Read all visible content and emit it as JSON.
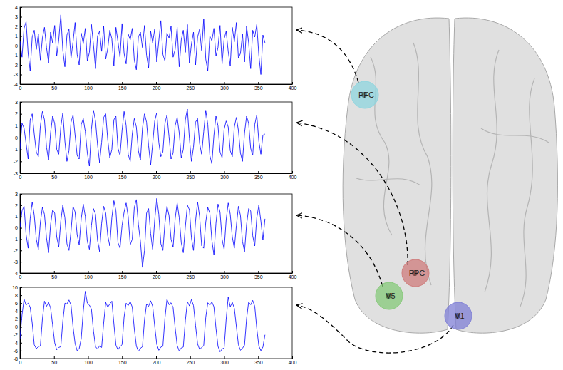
{
  "chart_data": [
    {
      "type": "line",
      "x": [
        0,
        3,
        6,
        9,
        12,
        15,
        18,
        21,
        24,
        27,
        30,
        33,
        36,
        39,
        42,
        45,
        48,
        51,
        54,
        57,
        60,
        63,
        66,
        69,
        72,
        75,
        78,
        81,
        84,
        87,
        90,
        93,
        96,
        99,
        102,
        105,
        108,
        111,
        114,
        117,
        120,
        123,
        126,
        129,
        132,
        135,
        138,
        141,
        144,
        147,
        150,
        153,
        156,
        159,
        162,
        165,
        168,
        171,
        174,
        177,
        180,
        183,
        186,
        189,
        192,
        195,
        198,
        201,
        204,
        207,
        210,
        213,
        216,
        219,
        222,
        225,
        228,
        231,
        234,
        237,
        240,
        243,
        246,
        249,
        252,
        255,
        258,
        261,
        264,
        267,
        270,
        273,
        276,
        279,
        282,
        285,
        288,
        291,
        294,
        297,
        300,
        303,
        306,
        309,
        312,
        315,
        318,
        321,
        324,
        327,
        330,
        333,
        336,
        339,
        342,
        345,
        348,
        351,
        354,
        357,
        360
      ],
      "series": [
        {
          "color": "#0000ff",
          "values": [
            0.5,
            -1.2,
            1.8,
            2.5,
            -0.8,
            -2.6,
            0.9,
            1.6,
            -0.4,
            1.2,
            -1.5,
            0.8,
            1.9,
            -0.2,
            -1.8,
            1.4,
            0.3,
            2.1,
            -1.1,
            0.6,
            3.2,
            -0.5,
            -2.2,
            1.1,
            1.7,
            -1.3,
            0.4,
            2.4,
            -0.9,
            -2.0,
            1.3,
            0.2,
            1.8,
            -1.6,
            -0.7,
            2.2,
            0.1,
            -2.4,
            1.0,
            1.5,
            -0.6,
            2.0,
            -1.4,
            -0.3,
            1.6,
            0.7,
            -2.1,
            1.9,
            0.4,
            -1.2,
            2.3,
            -0.8,
            -1.9,
            1.2,
            0.6,
            1.8,
            -1.5,
            -2.5,
            0.9,
            1.4,
            -0.2,
            2.1,
            -1.0,
            -2.3,
            1.5,
            0.3,
            1.7,
            -1.7,
            0.5,
            2.6,
            -0.9,
            -1.6,
            1.3,
            0.8,
            2.0,
            -1.2,
            -0.4,
            1.9,
            -2.2,
            0.6,
            1.6,
            -0.7,
            2.2,
            -1.8,
            0.2,
            1.4,
            -2.0,
            0.9,
            1.7,
            -0.5,
            2.8,
            -1.4,
            -2.6,
            1.0,
            0.5,
            1.8,
            -1.1,
            -0.2,
            2.1,
            -1.9,
            0.7,
            1.5,
            -0.6,
            -2.1,
            1.9,
            0.4,
            2.4,
            -1.3,
            -0.8,
            1.2,
            -1.7,
            2.0,
            0.3,
            -2.4,
            1.6,
            0.9,
            2.2,
            -1.0,
            -3.0,
            1.1,
            0.3
          ]
        }
      ],
      "xlim": [
        0,
        400
      ],
      "xticks": [
        0,
        50,
        100,
        150,
        200,
        250,
        300,
        350,
        400
      ],
      "ylim": [
        -4,
        4
      ],
      "yticks": [
        -4,
        -3,
        -2,
        -1,
        0,
        1,
        2,
        3,
        4
      ]
    },
    {
      "type": "line",
      "x": [
        0,
        3,
        6,
        9,
        12,
        15,
        18,
        21,
        24,
        27,
        30,
        33,
        36,
        39,
        42,
        45,
        48,
        51,
        54,
        57,
        60,
        63,
        66,
        69,
        72,
        75,
        78,
        81,
        84,
        87,
        90,
        93,
        96,
        99,
        102,
        105,
        108,
        111,
        114,
        117,
        120,
        123,
        126,
        129,
        132,
        135,
        138,
        141,
        144,
        147,
        150,
        153,
        156,
        159,
        162,
        165,
        168,
        171,
        174,
        177,
        180,
        183,
        186,
        189,
        192,
        195,
        198,
        201,
        204,
        207,
        210,
        213,
        216,
        219,
        222,
        225,
        228,
        231,
        234,
        237,
        240,
        243,
        246,
        249,
        252,
        255,
        258,
        261,
        264,
        267,
        270,
        273,
        276,
        279,
        282,
        285,
        288,
        291,
        294,
        297,
        300,
        303,
        306,
        309,
        312,
        315,
        318,
        321,
        324,
        327,
        330,
        333,
        336,
        339,
        342,
        345,
        348,
        351,
        354,
        357,
        360
      ],
      "series": [
        {
          "color": "#0000ff",
          "values": [
            -1.0,
            1.2,
            0.8,
            -0.5,
            -1.8,
            1.5,
            2.0,
            0.3,
            -1.2,
            -1.6,
            1.0,
            2.2,
            1.5,
            -0.8,
            -1.9,
            0.4,
            1.8,
            1.2,
            -1.0,
            -1.4,
            0.9,
            2.1,
            -0.3,
            -2.0,
            -1.1,
            1.3,
            1.9,
            0.2,
            -1.5,
            -1.8,
            1.1,
            1.6,
            0.5,
            -1.3,
            -2.4,
            0.7,
            2.3,
            1.4,
            -0.6,
            -2.1,
            -0.4,
            1.7,
            2.0,
            -0.2,
            -1.7,
            -1.0,
            1.5,
            1.8,
            -0.9,
            -1.5,
            0.6,
            2.2,
            1.0,
            -1.4,
            -2.0,
            0.3,
            1.6,
            0.9,
            -1.1,
            -1.9,
            0.8,
            2.0,
            1.3,
            -0.7,
            -2.3,
            -0.5,
            1.4,
            2.1,
            -0.4,
            -1.6,
            -1.2,
            1.2,
            1.9,
            0.1,
            -1.8,
            -1.3,
            1.0,
            1.7,
            0.4,
            -1.7,
            -1.0,
            1.5,
            2.4,
            -0.1,
            -2.0,
            -0.8,
            1.3,
            1.6,
            -0.5,
            -1.4,
            0.5,
            2.3,
            1.1,
            -1.5,
            -2.2,
            0.2,
            1.8,
            1.0,
            -1.2,
            -1.7,
            0.7,
            1.4,
            0.9,
            -1.1,
            -1.6,
            0.9,
            1.7,
            0.6,
            -1.3,
            -2.0,
            0.4,
            1.8,
            1.2,
            -0.9,
            -1.5,
            1.1,
            1.9,
            -0.3,
            -1.4,
            0.2,
            0.3
          ]
        }
      ],
      "xlim": [
        0,
        400
      ],
      "xticks": [
        0,
        50,
        100,
        150,
        200,
        250,
        300,
        350,
        400
      ],
      "ylim": [
        -3,
        3
      ],
      "yticks": [
        -3,
        -2,
        -1,
        0,
        1,
        2,
        3
      ]
    },
    {
      "type": "line",
      "x": [
        0,
        3,
        6,
        9,
        12,
        15,
        18,
        21,
        24,
        27,
        30,
        33,
        36,
        39,
        42,
        45,
        48,
        51,
        54,
        57,
        60,
        63,
        66,
        69,
        72,
        75,
        78,
        81,
        84,
        87,
        90,
        93,
        96,
        99,
        102,
        105,
        108,
        111,
        114,
        117,
        120,
        123,
        126,
        129,
        132,
        135,
        138,
        141,
        144,
        147,
        150,
        153,
        156,
        159,
        162,
        165,
        168,
        171,
        174,
        177,
        180,
        183,
        186,
        189,
        192,
        195,
        198,
        201,
        204,
        207,
        210,
        213,
        216,
        219,
        222,
        225,
        228,
        231,
        234,
        237,
        240,
        243,
        246,
        249,
        252,
        255,
        258,
        261,
        264,
        267,
        270,
        273,
        276,
        279,
        282,
        285,
        288,
        291,
        294,
        297,
        300,
        303,
        306,
        309,
        312,
        315,
        318,
        321,
        324,
        327,
        330,
        333,
        336,
        339,
        342,
        345,
        348,
        351,
        354,
        357,
        360
      ],
      "series": [
        {
          "color": "#0000ff",
          "values": [
            0.0,
            1.5,
            1.9,
            -0.6,
            -1.8,
            0.8,
            2.3,
            1.1,
            -1.0,
            -1.9,
            0.5,
            1.8,
            1.2,
            -0.9,
            -2.2,
            0.3,
            1.6,
            1.3,
            -0.8,
            -1.7,
            0.6,
            2.0,
            0.9,
            -1.4,
            -2.0,
            -0.3,
            1.9,
            1.4,
            -0.6,
            -1.5,
            0.8,
            2.1,
            1.0,
            -1.2,
            -1.9,
            0.2,
            1.7,
            1.2,
            -1.1,
            -2.1,
            0.4,
            1.9,
            1.3,
            -0.7,
            -1.6,
            0.9,
            2.4,
            1.5,
            -1.3,
            -1.8,
            0.2,
            1.4,
            2.2,
            1.0,
            -1.5,
            -1.0,
            1.8,
            2.5,
            0.3,
            -1.2,
            -3.5,
            -2.0,
            1.3,
            1.7,
            -0.5,
            -1.9,
            0.7,
            2.6,
            1.2,
            -1.4,
            -2.0,
            0.4,
            1.9,
            1.1,
            -1.0,
            -1.7,
            0.8,
            2.2,
            0.9,
            -1.3,
            -2.2,
            0.1,
            2.0,
            1.6,
            -0.9,
            -2.0,
            0.6,
            2.3,
            1.0,
            -1.6,
            -1.8,
            0.5,
            1.8,
            1.3,
            -1.1,
            -2.4,
            0.4,
            2.1,
            1.4,
            -1.0,
            -1.9,
            0.7,
            2.2,
            1.2,
            -0.8,
            -1.8,
            0.2,
            1.9,
            1.1,
            -1.2,
            -2.1,
            0.3,
            1.7,
            1.5,
            -0.7,
            -1.6,
            0.9,
            2.0,
            0.6,
            -1.1,
            0.8
          ]
        }
      ],
      "xlim": [
        0,
        400
      ],
      "xticks": [
        0,
        50,
        100,
        150,
        200,
        250,
        300,
        350,
        400
      ],
      "ylim": [
        -4,
        3
      ],
      "yticks": [
        -4,
        -3,
        -2,
        -1,
        0,
        1,
        2,
        3
      ]
    },
    {
      "type": "line",
      "x": [
        0,
        3,
        6,
        9,
        12,
        15,
        18,
        21,
        24,
        27,
        30,
        33,
        36,
        39,
        42,
        45,
        48,
        51,
        54,
        57,
        60,
        63,
        66,
        69,
        72,
        75,
        78,
        81,
        84,
        87,
        90,
        93,
        96,
        99,
        102,
        105,
        108,
        111,
        114,
        117,
        120,
        123,
        126,
        129,
        132,
        135,
        138,
        141,
        144,
        147,
        150,
        153,
        156,
        159,
        162,
        165,
        168,
        171,
        174,
        177,
        180,
        183,
        186,
        189,
        192,
        195,
        198,
        201,
        204,
        207,
        210,
        213,
        216,
        219,
        222,
        225,
        228,
        231,
        234,
        237,
        240,
        243,
        246,
        249,
        252,
        255,
        258,
        261,
        264,
        267,
        270,
        273,
        276,
        279,
        282,
        285,
        288,
        291,
        294,
        297,
        300,
        303,
        306,
        309,
        312,
        315,
        318,
        321,
        324,
        327,
        330,
        333,
        336,
        339,
        342,
        345,
        348,
        351,
        354,
        357,
        360
      ],
      "series": [
        {
          "color": "#0000ff",
          "values": [
            -3,
            3,
            7,
            5.5,
            6,
            5,
            1,
            -4.5,
            -5.5,
            -5,
            -4.8,
            2,
            6.5,
            5.2,
            6.2,
            4.8,
            0.5,
            -4,
            -5.8,
            -5.2,
            -5,
            1.5,
            6,
            5.8,
            6.8,
            5.5,
            0,
            -4.2,
            -6,
            -5.5,
            -3,
            4,
            9,
            6,
            5.5,
            4.5,
            -1,
            -5,
            -5.6,
            -4.8,
            -5.2,
            1,
            6.2,
            5,
            5.8,
            6.5,
            0.8,
            -4.6,
            -5.8,
            -5,
            -4.5,
            2.5,
            6,
            5.4,
            6.4,
            5,
            -0.5,
            -4.8,
            -6.2,
            -5.4,
            -5,
            1.8,
            5.8,
            5.2,
            6.6,
            5.2,
            0.2,
            -4.4,
            -5.9,
            -5.1,
            -4.9,
            2.2,
            7,
            5.6,
            6.1,
            4.9,
            -0.2,
            -4.7,
            -6.1,
            -5.3,
            -5.1,
            1.6,
            6.4,
            5.3,
            6.9,
            5.4,
            0.4,
            -4.3,
            -5.7,
            -5.2,
            -4.7,
            2.4,
            6.1,
            5.5,
            6.3,
            5.1,
            -0.3,
            -4.9,
            -6.3,
            -5.6,
            -5.3,
            1.9,
            7.5,
            5.1,
            6.2,
            4.7,
            0.1,
            -4.5,
            -5.9,
            -5.4,
            -4.6,
            2.1,
            6.3,
            5.6,
            6.7,
            5.2,
            -0.4,
            -4.8,
            -6,
            -5.1,
            -2
          ]
        }
      ],
      "xlim": [
        0,
        400
      ],
      "xticks": [
        0,
        50,
        100,
        150,
        200,
        250,
        300,
        350,
        400
      ],
      "ylim": [
        -8,
        10
      ],
      "yticks": [
        -8,
        -6,
        -4,
        -2,
        0,
        2,
        4,
        6,
        8,
        10
      ]
    }
  ],
  "brain": {
    "regions": [
      {
        "label": "PFC",
        "color": "#8fd6df"
      },
      {
        "label": "PPC",
        "color": "#cf7c7c"
      },
      {
        "label": "V5",
        "color": "#86c979"
      },
      {
        "label": "V1",
        "color": "#7f7fd6"
      }
    ]
  }
}
